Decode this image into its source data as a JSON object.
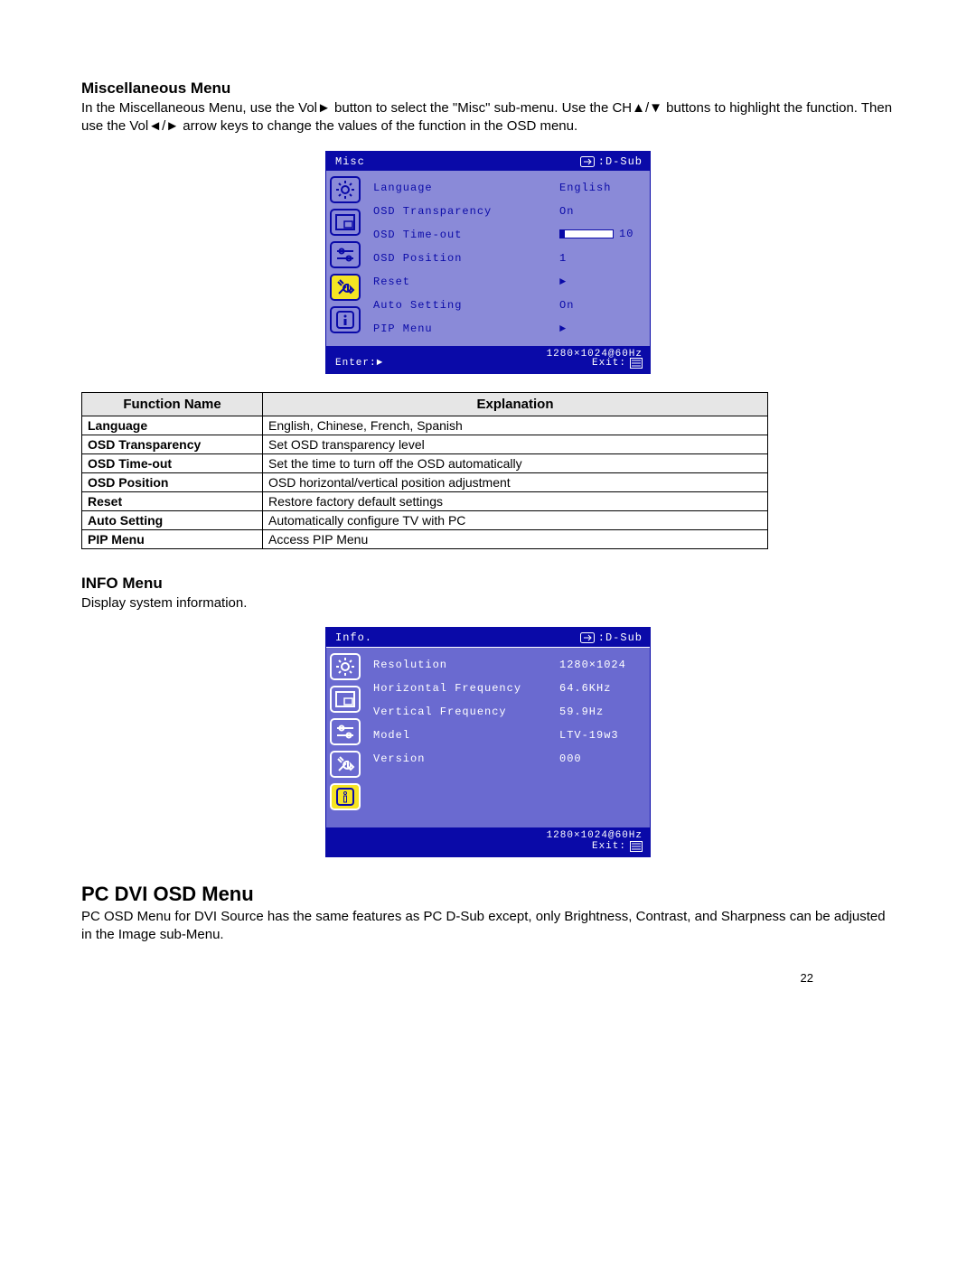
{
  "page_number": "22",
  "section1": {
    "heading": "Miscellaneous Menu",
    "paragraph": "In the Miscellaneous Menu, use the Vol► button to select the \"Misc\" sub-menu. Use the CH▲/▼ buttons to highlight the function.    Then use the Vol◄/► arrow keys to change the values of the function in the OSD menu."
  },
  "osd_misc": {
    "title": "Misc",
    "source_label": ":D-Sub",
    "active_icon_index": 3,
    "icon_names": [
      "brightness-icon",
      "picture-icon",
      "adjust-icon",
      "tools-icon",
      "info-icon"
    ],
    "rows": [
      {
        "label": "Language",
        "value": "English"
      },
      {
        "label": "OSD Transparency",
        "value": "On"
      },
      {
        "label": "OSD Time-out",
        "value_type": "slider",
        "slider_value": 10,
        "slider_max": 120,
        "slider_text": "10"
      },
      {
        "label": "OSD Position",
        "value": "1"
      },
      {
        "label": "Reset",
        "value": "►"
      },
      {
        "label": "Auto Setting",
        "value": "On"
      },
      {
        "label": "PIP Menu",
        "value": "►"
      }
    ],
    "footer_left": "Enter:►",
    "footer_status": "1280×1024@60Hz",
    "footer_exit": "Exit:"
  },
  "explain_table": {
    "headers": [
      "Function Name",
      "Explanation"
    ],
    "rows": [
      [
        "Language",
        "English, Chinese, French, Spanish"
      ],
      [
        "OSD Transparency",
        "Set OSD transparency level"
      ],
      [
        "OSD Time-out",
        "Set the time to turn off the OSD automatically"
      ],
      [
        "OSD Position",
        "OSD horizontal/vertical position adjustment"
      ],
      [
        "Reset",
        "Restore factory default settings"
      ],
      [
        "Auto Setting",
        "Automatically configure TV with PC"
      ],
      [
        "PIP Menu",
        "Access PIP Menu"
      ]
    ]
  },
  "section2": {
    "heading": "INFO Menu",
    "paragraph": "Display system information."
  },
  "osd_info": {
    "title": "Info.",
    "source_label": ":D-Sub",
    "active_icon_index": 4,
    "icon_names": [
      "brightness-icon",
      "picture-icon",
      "adjust-icon",
      "tools-icon",
      "info-icon"
    ],
    "rows": [
      {
        "label": "Resolution",
        "value": "1280×1024"
      },
      {
        "label": "Horizontal Frequency",
        "value": "64.6KHz"
      },
      {
        "label": "Vertical Frequency",
        "value": "59.9Hz"
      },
      {
        "label": "Model",
        "value": "LTV-19w3"
      },
      {
        "label": "Version",
        "value": "000"
      }
    ],
    "footer_status": "1280×1024@60Hz",
    "footer_exit": "Exit:"
  },
  "section3": {
    "heading": "PC DVI OSD Menu",
    "paragraph": "PC OSD Menu for DVI Source has the same features as PC D-Sub except, only Brightness, Contrast, and Sharpness can be adjusted in the Image sub-Menu."
  }
}
